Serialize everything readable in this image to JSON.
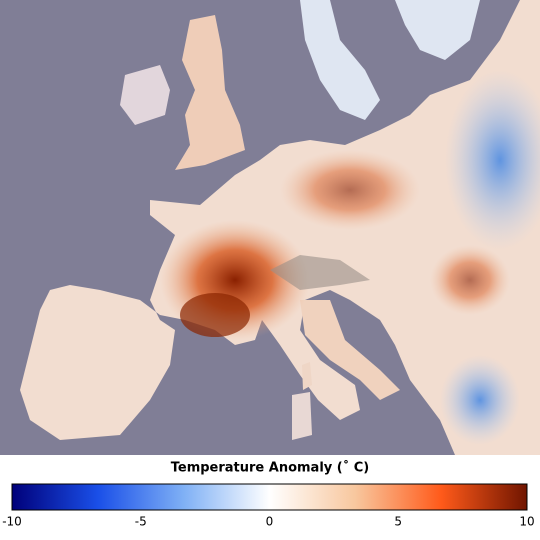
{
  "colorbar": {
    "title": "Temperature Anomaly (˚ C)",
    "range": [
      -10,
      10
    ],
    "ticks": [
      -10,
      -5,
      0,
      5,
      10
    ],
    "colors": [
      "#00007a",
      "#1a4fe8",
      "#7fb0f5",
      "#ffffff",
      "#f8c79e",
      "#ff5a1a",
      "#701500"
    ]
  }
}
